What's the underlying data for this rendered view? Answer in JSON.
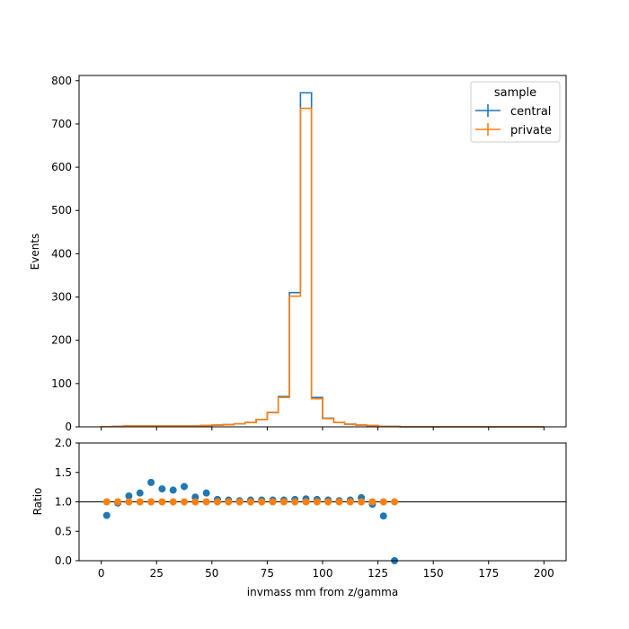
{
  "chart_data": [
    {
      "type": "step",
      "xlim": [
        -10,
        210
      ],
      "ylim": [
        0,
        812
      ],
      "ylabel": "Events",
      "yticks": [
        0,
        100,
        200,
        300,
        400,
        500,
        600,
        700,
        800
      ],
      "xticks": [
        0,
        25,
        50,
        75,
        100,
        125,
        150,
        175,
        200
      ],
      "bin_edges": [
        0,
        5,
        10,
        15,
        20,
        25,
        30,
        35,
        40,
        45,
        50,
        55,
        60,
        65,
        70,
        75,
        80,
        85,
        90,
        95,
        100,
        105,
        110,
        115,
        120,
        125,
        130,
        135,
        140,
        145,
        150,
        155,
        160,
        165,
        170,
        175,
        180,
        185,
        190,
        195,
        200
      ],
      "legend": {
        "title": "sample",
        "position": "top-right"
      },
      "series": [
        {
          "name": "central",
          "color": "#1f77b4",
          "values": [
            0.5,
            1,
            2,
            2,
            2,
            2,
            2,
            2,
            2,
            3,
            4,
            5,
            7,
            10,
            17,
            33,
            70,
            310,
            772,
            68,
            20,
            10,
            6,
            4,
            3,
            1,
            1,
            0,
            0,
            0,
            0,
            0,
            0,
            0,
            0,
            0,
            0,
            0,
            0,
            0
          ]
        },
        {
          "name": "private",
          "color": "#ff7f0e",
          "values": [
            0.5,
            1,
            2,
            2,
            2,
            2,
            2,
            2,
            2,
            3,
            4,
            5,
            7,
            10,
            17,
            33,
            68,
            302,
            736,
            65,
            19,
            10,
            6,
            4,
            3,
            1,
            1,
            0,
            0,
            0,
            0,
            0,
            0,
            0,
            0,
            0,
            0,
            0,
            0,
            0
          ]
        }
      ]
    },
    {
      "type": "scatter",
      "xlim": [
        -10,
        210
      ],
      "ylim": [
        0,
        2
      ],
      "xlabel": "invmass mm from z/gamma",
      "ylabel": "Ratio",
      "yticks": [
        "0.0",
        "0.5",
        "1.0",
        "1.5",
        "2.0"
      ],
      "xticks": [
        0,
        25,
        50,
        75,
        100,
        125,
        150,
        175,
        200
      ],
      "reference_line": 1.0,
      "series": [
        {
          "name": "central",
          "color": "#1f77b4",
          "x": [
            2.5,
            7.5,
            12.5,
            17.5,
            22.5,
            27.5,
            32.5,
            37.5,
            42.5,
            47.5,
            52.5,
            57.5,
            62.5,
            67.5,
            72.5,
            77.5,
            82.5,
            87.5,
            92.5,
            97.5,
            102.5,
            107.5,
            112.5,
            117.5,
            122.5,
            127.5,
            132.5
          ],
          "y": [
            0.77,
            0.98,
            1.1,
            1.15,
            1.33,
            1.22,
            1.2,
            1.26,
            1.08,
            1.15,
            1.04,
            1.03,
            1.02,
            1.03,
            1.03,
            1.03,
            1.03,
            1.04,
            1.05,
            1.04,
            1.03,
            1.02,
            1.03,
            1.07,
            0.96,
            0.76,
            0.0
          ]
        },
        {
          "name": "private",
          "color": "#ff7f0e",
          "x": [
            2.5,
            7.5,
            12.5,
            17.5,
            22.5,
            27.5,
            32.5,
            37.5,
            42.5,
            47.5,
            52.5,
            57.5,
            62.5,
            67.5,
            72.5,
            77.5,
            82.5,
            87.5,
            92.5,
            97.5,
            102.5,
            107.5,
            112.5,
            117.5,
            122.5,
            127.5,
            132.5
          ],
          "y": [
            1,
            1,
            1,
            1,
            1,
            1,
            1,
            1,
            1,
            1,
            1,
            1,
            1,
            1,
            1,
            1,
            1,
            1,
            1,
            1,
            1,
            1,
            1,
            1,
            1,
            1,
            1
          ]
        }
      ]
    }
  ]
}
